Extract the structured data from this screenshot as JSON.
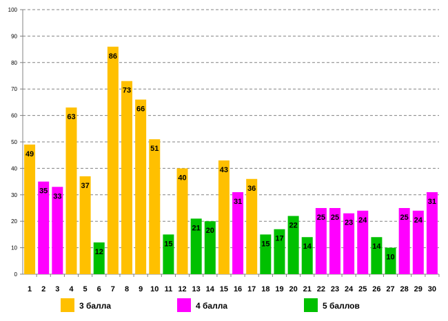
{
  "chart_data": {
    "type": "bar",
    "title": "",
    "xlabel": "",
    "ylabel": "",
    "ylim": [
      0,
      100
    ],
    "yticks": [
      0,
      10,
      20,
      30,
      40,
      50,
      60,
      70,
      80,
      90,
      100
    ],
    "grid": true,
    "legend_position": "bottom",
    "categories": [
      "1",
      "2",
      "3",
      "4",
      "5",
      "6",
      "7",
      "8",
      "9",
      "10",
      "11",
      "12",
      "13",
      "14",
      "15",
      "16",
      "17",
      "18",
      "19",
      "20",
      "21",
      "22",
      "23",
      "24",
      "25",
      "26",
      "27",
      "28",
      "29",
      "30"
    ],
    "values": [
      49,
      35,
      33,
      63,
      37,
      12,
      86,
      73,
      66,
      51,
      15,
      40,
      21,
      20,
      43,
      31,
      36,
      15,
      17,
      22,
      14,
      25,
      25,
      23,
      24,
      14,
      10,
      25,
      24,
      31
    ],
    "groups": [
      "3",
      "4",
      "4",
      "3",
      "3",
      "5",
      "3",
      "3",
      "3",
      "3",
      "5",
      "3",
      "5",
      "5",
      "3",
      "4",
      "3",
      "5",
      "5",
      "5",
      "5",
      "4",
      "4",
      "4",
      "4",
      "5",
      "5",
      "4",
      "4",
      "4"
    ],
    "series": [
      {
        "key": "3",
        "name": "3 балла",
        "color": "#FFC000"
      },
      {
        "key": "4",
        "name": "4 балла",
        "color": "#FF00FF"
      },
      {
        "key": "5",
        "name": "5 баллов",
        "color": "#00C000"
      }
    ]
  }
}
